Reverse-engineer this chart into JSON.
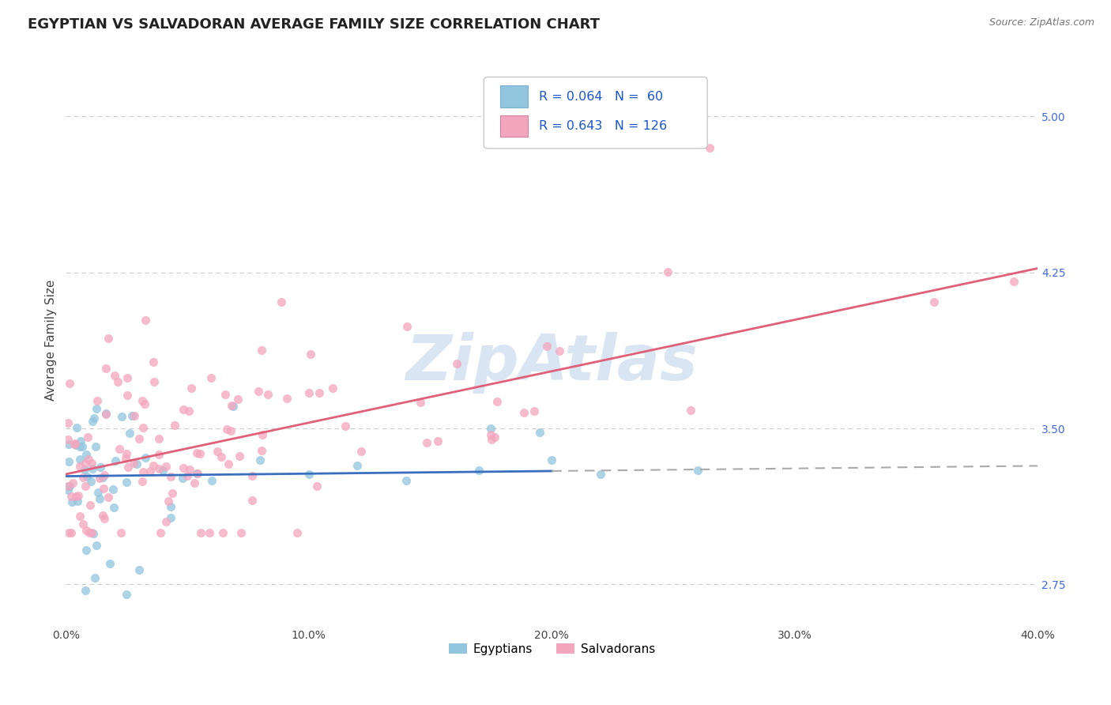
{
  "title": "EGYPTIAN VS SALVADORAN AVERAGE FAMILY SIZE CORRELATION CHART",
  "source_text": "Source: ZipAtlas.com",
  "ylabel": "Average Family Size",
  "legend_labels": [
    "Egyptians",
    "Salvadorans"
  ],
  "legend_r": [
    0.064,
    0.643
  ],
  "legend_n": [
    60,
    126
  ],
  "xlim": [
    0.0,
    0.4
  ],
  "ylim": [
    2.55,
    5.3
  ],
  "yticks": [
    2.75,
    3.5,
    4.25,
    5.0
  ],
  "xticks": [
    0.0,
    0.1,
    0.2,
    0.3,
    0.4
  ],
  "xtick_labels": [
    "0.0%",
    "10.0%",
    "20.0%",
    "30.0%",
    "40.0%"
  ],
  "color_egyptian": "#92c5de",
  "color_salvadoran": "#f4a6be",
  "trend_color_egyptian_solid": "#3a6fbf",
  "trend_color_egyptian_dashed": "#aaaaaa",
  "trend_color_salvadoran": "#e0607a",
  "background_color": "#ffffff",
  "grid_color": "#cccccc",
  "watermark_text": "ZipAtlas",
  "watermark_color": "#c5d8ed",
  "title_fontsize": 13,
  "axis_label_fontsize": 11,
  "tick_fontsize": 10,
  "right_tick_color": "#4169e1",
  "eg_trend_start_x": 0.0,
  "eg_trend_end_solid_x": 0.2,
  "eg_trend_end_dashed_x": 0.4,
  "eg_trend_y_at_0": 3.27,
  "eg_trend_y_at_02": 3.295,
  "eg_trend_y_at_04": 3.32,
  "sal_trend_y_at_0": 3.28,
  "sal_trend_y_at_04": 4.27
}
